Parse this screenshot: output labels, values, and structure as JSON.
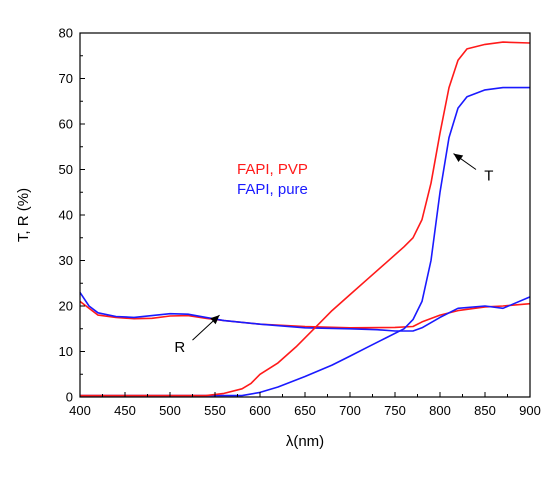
{
  "chart_data": {
    "type": "line",
    "title": "",
    "xlabel": "λ(nm)",
    "ylabel": "T, R (%)",
    "xlim": [
      400,
      900
    ],
    "ylim": [
      0,
      80
    ],
    "xticks": [
      400,
      450,
      500,
      550,
      600,
      650,
      700,
      750,
      800,
      850,
      900
    ],
    "yticks": [
      0,
      10,
      20,
      30,
      40,
      50,
      60,
      70,
      80
    ],
    "grid": false,
    "legend": "center-left",
    "colors": {
      "FAPI, PVP": "#ff1a1a",
      "FAPI, pure": "#1a1aff"
    },
    "series": [
      {
        "name": "FAPI, PVP",
        "measure": "T",
        "x": [
          400,
          450,
          500,
          540,
          560,
          580,
          590,
          600,
          620,
          640,
          660,
          680,
          700,
          720,
          740,
          760,
          770,
          780,
          790,
          800,
          810,
          820,
          830,
          850,
          870,
          900
        ],
        "y": [
          0.3,
          0.3,
          0.3,
          0.3,
          0.8,
          1.8,
          3.0,
          5.0,
          7.5,
          11,
          15,
          19,
          22.5,
          26,
          29.5,
          33,
          35,
          39,
          47,
          58,
          68,
          74,
          76.5,
          77.5,
          78,
          77.8
        ]
      },
      {
        "name": "FAPI, pure",
        "measure": "T",
        "x": [
          400,
          450,
          500,
          550,
          580,
          600,
          620,
          650,
          680,
          700,
          720,
          740,
          760,
          770,
          780,
          790,
          800,
          810,
          820,
          830,
          850,
          870,
          900
        ],
        "y": [
          0.3,
          0.3,
          0.3,
          0.3,
          0.3,
          1.0,
          2.2,
          4.5,
          7,
          9,
          11,
          13,
          15,
          17,
          21,
          30,
          45,
          57,
          63.5,
          66,
          67.5,
          68,
          68
        ]
      },
      {
        "name": "FAPI, PVP",
        "measure": "R",
        "x": [
          400,
          410,
          420,
          440,
          460,
          480,
          500,
          520,
          540,
          560,
          600,
          650,
          700,
          750,
          770,
          780,
          800,
          820,
          850,
          870,
          900
        ],
        "y": [
          21,
          19.5,
          18,
          17.5,
          17.2,
          17.3,
          17.8,
          17.9,
          17.3,
          16.8,
          16,
          15.5,
          15.2,
          15.3,
          15.5,
          16.5,
          18,
          19,
          19.8,
          20,
          20.5
        ]
      },
      {
        "name": "FAPI, pure",
        "measure": "R",
        "x": [
          400,
          410,
          420,
          440,
          460,
          480,
          500,
          520,
          540,
          560,
          600,
          650,
          700,
          730,
          750,
          770,
          780,
          800,
          820,
          850,
          870,
          900
        ],
        "y": [
          23,
          20,
          18.5,
          17.7,
          17.5,
          17.9,
          18.3,
          18.2,
          17.5,
          16.8,
          16,
          15.2,
          15,
          14.8,
          14.5,
          14.5,
          15.2,
          17.5,
          19.5,
          20,
          19.5,
          22
        ]
      }
    ],
    "annotations": [
      {
        "text": "R",
        "arrow_from": [
          525,
          12.5
        ],
        "arrow_to": [
          555,
          18
        ]
      },
      {
        "text": "T",
        "arrow_from": [
          840,
          50
        ],
        "arrow_to": [
          815,
          53.5
        ]
      }
    ]
  }
}
